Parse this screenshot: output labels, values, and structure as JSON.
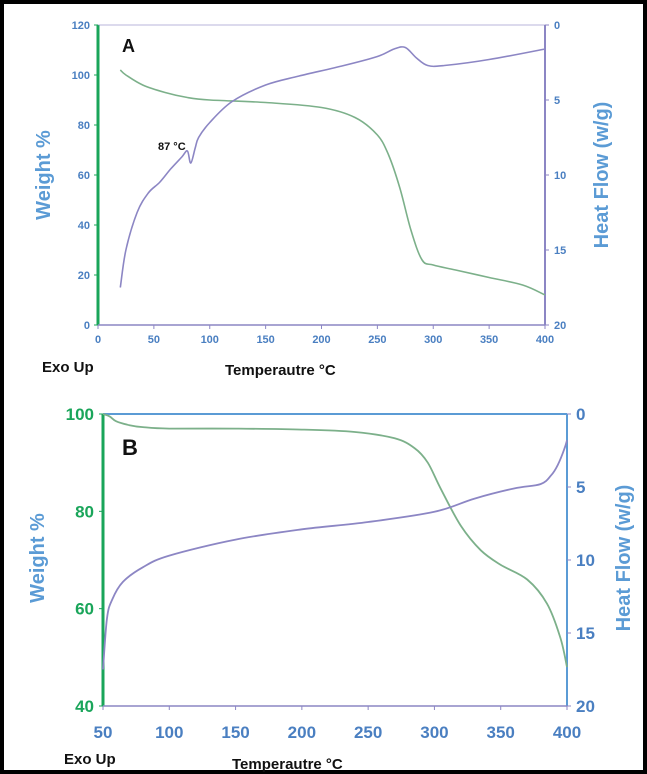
{
  "colors": {
    "weight_series": "#7cb08a",
    "heatflow_series": "#8c86c4",
    "left_axis_A": "#1aa55a",
    "left_axis_B": "#1aa55a",
    "right_axis": "#8c86c4",
    "weight_title": "#5b9bd5",
    "heat_title": "#5b9bd5",
    "tick_blue": "#4a7fc1",
    "tick_green_B": "#1aa55a",
    "text_dark": "#111111"
  },
  "panels": [
    {
      "label": "A",
      "ylabel_left": "Weight %",
      "ylabel_right": "Heat Flow (w/g)",
      "xlabel": "Temperautre °C",
      "left_note": "Exo Up",
      "annotation": "87 °C",
      "x_ticks": [
        "0",
        "50",
        "100",
        "150",
        "200",
        "250",
        "300",
        "350",
        "400"
      ],
      "y_left_ticks": [
        "0",
        "20",
        "40",
        "60",
        "80",
        "100",
        "120"
      ],
      "y_right_ticks": [
        "0",
        "5",
        "10",
        "15",
        "20"
      ]
    },
    {
      "label": "B",
      "ylabel_left": "Weight %",
      "ylabel_right": "Heat Flow (w/g)",
      "xlabel": "Temperautre °C",
      "left_note": "Exo Up",
      "x_ticks": [
        "50",
        "100",
        "150",
        "200",
        "250",
        "300",
        "350",
        "400"
      ],
      "y_left_ticks": [
        "40",
        "60",
        "80",
        "100"
      ],
      "y_right_ticks": [
        "0",
        "5",
        "10",
        "15",
        "20"
      ]
    }
  ],
  "chart_data": [
    {
      "type": "line",
      "panel": "A",
      "title": "",
      "xlabel": "Temperautre °C",
      "ylabel": "Weight %",
      "y2label": "Heat Flow (w/g)",
      "xlim": [
        0,
        400
      ],
      "ylim": [
        0,
        120
      ],
      "y2lim": [
        0,
        20
      ],
      "y2_inverted": true,
      "series": [
        {
          "axis": "left",
          "x": [
            20,
            25,
            40,
            60,
            80,
            100,
            150,
            200,
            230,
            250,
            260,
            270,
            280,
            290,
            300,
            320,
            350,
            380,
            400
          ],
          "values": [
            102,
            100,
            96,
            93,
            91,
            90,
            89,
            87,
            83,
            76,
            68,
            55,
            38,
            26,
            24,
            22,
            19,
            16,
            12
          ]
        },
        {
          "axis": "right",
          "x": [
            20,
            25,
            35,
            45,
            55,
            65,
            75,
            80,
            83,
            87,
            90,
            100,
            120,
            150,
            180,
            220,
            250,
            265,
            275,
            285,
            295,
            310,
            350,
            400
          ],
          "values": [
            17.5,
            15,
            12.5,
            11.2,
            10.5,
            9.6,
            8.8,
            8.4,
            9.2,
            8.2,
            7.5,
            6.5,
            5.1,
            4.0,
            3.4,
            2.7,
            2.1,
            1.6,
            1.5,
            2.2,
            2.7,
            2.7,
            2.3,
            1.6
          ]
        }
      ],
      "annotations": [
        {
          "text": "87 °C",
          "x": 87
        }
      ]
    },
    {
      "type": "line",
      "panel": "B",
      "title": "",
      "xlabel": "Temperautre °C",
      "ylabel": "Weight %",
      "y2label": "Heat Flow (w/g)",
      "xlim": [
        50,
        400
      ],
      "ylim": [
        40,
        100
      ],
      "y2lim": [
        0,
        20
      ],
      "y2_inverted": true,
      "series": [
        {
          "axis": "left",
          "x": [
            50,
            55,
            60,
            70,
            80,
            100,
            150,
            200,
            240,
            270,
            285,
            295,
            305,
            320,
            335,
            350,
            370,
            385,
            395,
            400
          ],
          "values": [
            100,
            99.5,
            98.5,
            97.7,
            97.3,
            97,
            97,
            96.8,
            96.3,
            95,
            93,
            90,
            84.5,
            77,
            72,
            69,
            66,
            61,
            54,
            48
          ]
        },
        {
          "axis": "right",
          "x": [
            50,
            53,
            57,
            65,
            80,
            100,
            150,
            200,
            250,
            300,
            330,
            360,
            380,
            388,
            393,
            398,
            400
          ],
          "values": [
            17.5,
            14,
            12.7,
            11.5,
            10.5,
            9.7,
            8.6,
            7.9,
            7.4,
            6.7,
            5.8,
            5.1,
            4.8,
            4.2,
            3.5,
            2.4,
            1.8
          ]
        }
      ]
    }
  ]
}
